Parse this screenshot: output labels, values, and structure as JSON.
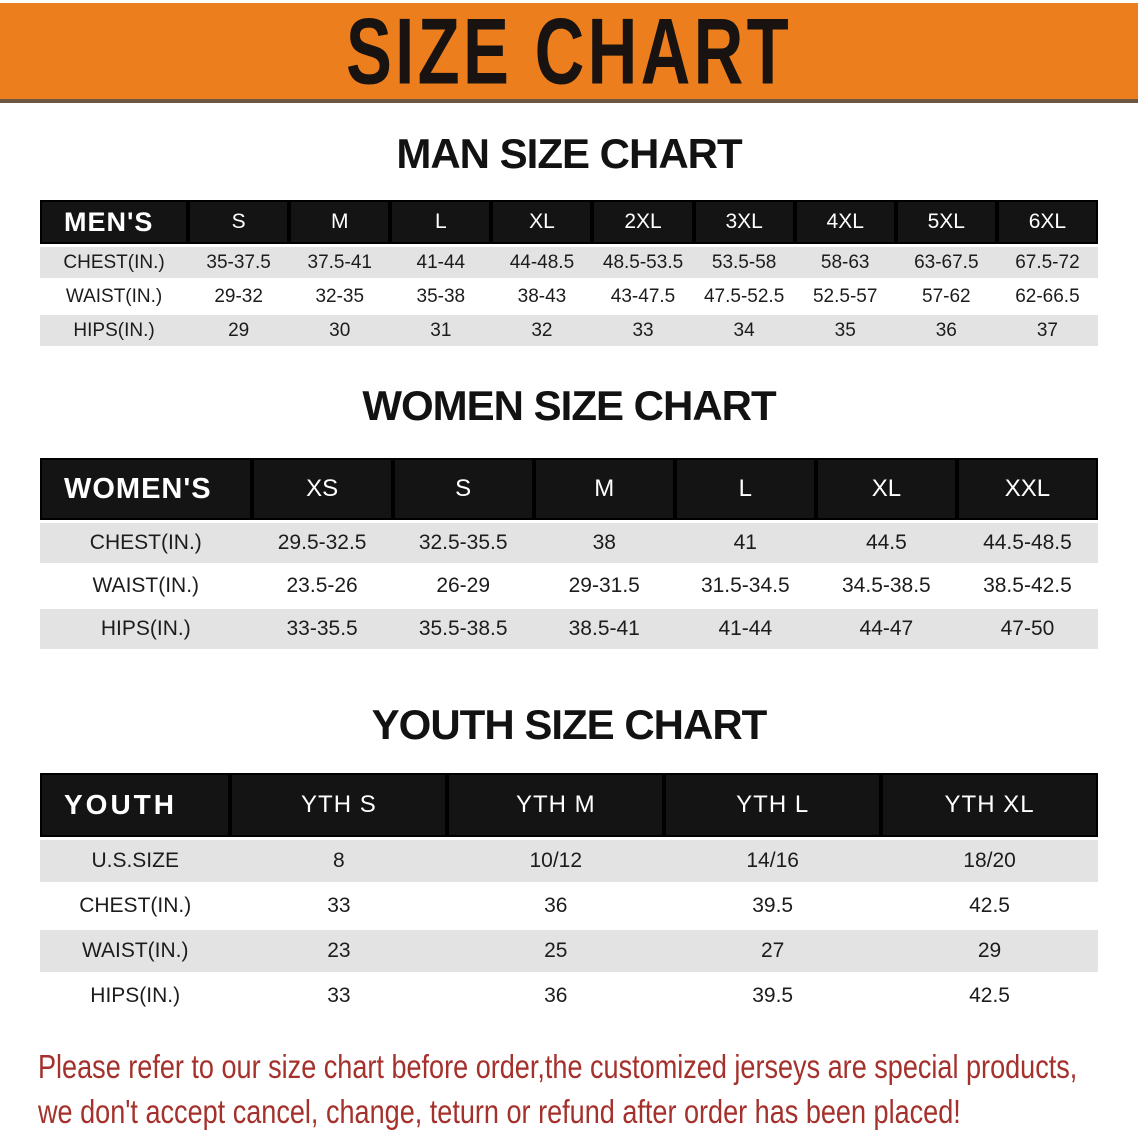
{
  "banner": {
    "title": "SIZE CHART"
  },
  "colors": {
    "banner_bg": "#ec7e1d",
    "header_bar": "#141414",
    "row_stripe": "#e3e3e3",
    "disclaimer_text": "#a5312c"
  },
  "sections": [
    {
      "heading": "MAN SIZE CHART",
      "table": {
        "header": [
          "MEN'S",
          "S",
          "M",
          "L",
          "XL",
          "2XL",
          "3XL",
          "4XL",
          "5XL",
          "6XL"
        ],
        "rows": [
          [
            "CHEST(IN.)",
            "35-37.5",
            "37.5-41",
            "41-44",
            "44-48.5",
            "48.5-53.5",
            "53.5-58",
            "58-63",
            "63-67.5",
            "67.5-72"
          ],
          [
            "WAIST(IN.)",
            "29-32",
            "32-35",
            "35-38",
            "38-43",
            "43-47.5",
            "47.5-52.5",
            "52.5-57",
            "57-62",
            "62-66.5"
          ],
          [
            "HIPS(IN.)",
            "29",
            "30",
            "31",
            "32",
            "33",
            "34",
            "35",
            "36",
            "37"
          ]
        ]
      }
    },
    {
      "heading": "WOMEN SIZE CHART",
      "table": {
        "header": [
          "WOMEN'S",
          "XS",
          "S",
          "M",
          "L",
          "XL",
          "XXL"
        ],
        "rows": [
          [
            "CHEST(IN.)",
            "29.5-32.5",
            "32.5-35.5",
            "38",
            "41",
            "44.5",
            "44.5-48.5"
          ],
          [
            "WAIST(IN.)",
            "23.5-26",
            "26-29",
            "29-31.5",
            "31.5-34.5",
            "34.5-38.5",
            "38.5-42.5"
          ],
          [
            "HIPS(IN.)",
            "33-35.5",
            "35.5-38.5",
            "38.5-41",
            "41-44",
            "44-47",
            "47-50"
          ]
        ]
      }
    },
    {
      "heading": "YOUTH SIZE CHART",
      "table": {
        "header": [
          "YOUTH",
          "YTH S",
          "YTH M",
          "YTH L",
          "YTH XL"
        ],
        "rows": [
          [
            "U.S.SIZE",
            "8",
            "10/12",
            "14/16",
            "18/20"
          ],
          [
            "CHEST(IN.)",
            "33",
            "36",
            "39.5",
            "42.5"
          ],
          [
            "WAIST(IN.)",
            "23",
            "25",
            "27",
            "29"
          ],
          [
            "HIPS(IN.)",
            "33",
            "36",
            "39.5",
            "42.5"
          ]
        ]
      }
    }
  ],
  "disclaimer": {
    "line1": "Please refer to our size chart before order,the customized jerseys are special products,",
    "line2": "we don't accept cancel, change, teturn or refund after order has been placed!"
  }
}
